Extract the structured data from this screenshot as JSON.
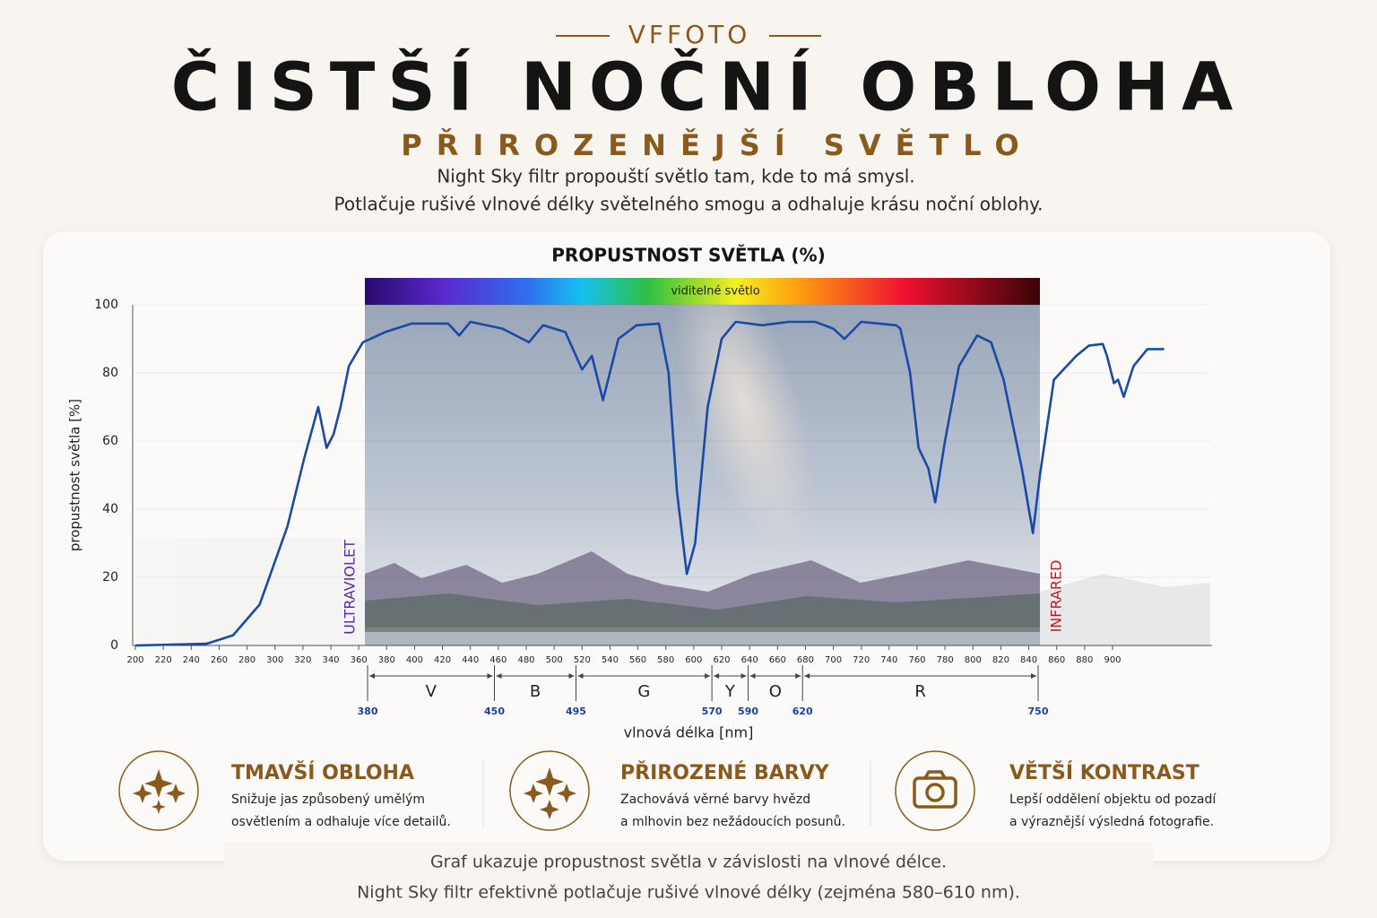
{
  "header": {
    "brand": "VFFOTO",
    "title": "ČISTŠÍ NOČNÍ OBLOHA",
    "subtitle": "PŘIROZENĚJŠÍ SVĚTLO",
    "intro": [
      "Night Sky filtr propouští světlo tam, kde to má smysl.",
      "Potlačuje rušivé vlnové délky světelného smogu a odhaluje krásu noční oblohy."
    ]
  },
  "chart_data": {
    "type": "line",
    "title": "PROPUSTNOST SVĚTLA (%)",
    "x_label": "vlnová délka [nm]",
    "y_label": "propustnost světla [%]",
    "spectrum_label": "viditelné světlo",
    "uv_label": "ULTRAVIOLET",
    "ir_label": "INFRARED",
    "color": "#1b4aa6",
    "x": [
      200,
      251,
      270,
      289,
      309,
      321,
      331,
      337,
      342,
      347,
      353,
      363,
      379,
      398,
      424,
      432,
      440,
      463,
      482,
      492,
      508,
      520,
      527,
      535,
      546,
      559,
      575,
      582,
      588,
      595,
      601,
      610,
      620,
      630,
      649,
      668,
      687,
      700,
      708,
      720,
      745,
      748,
      755,
      761,
      768,
      773,
      780,
      790,
      803,
      813,
      822,
      835,
      843,
      848,
      858,
      874,
      883,
      893,
      896,
      901,
      904,
      908,
      915,
      925,
      937
    ],
    "values": [
      0,
      0.5,
      3,
      12,
      35,
      55,
      70,
      58,
      62,
      70,
      82,
      89,
      92,
      94.5,
      94.5,
      91,
      95,
      93,
      89,
      94,
      92,
      81,
      85,
      72,
      90,
      94,
      94.5,
      80,
      45,
      21,
      30,
      70,
      90,
      95,
      94,
      95,
      95,
      93,
      90,
      95,
      94,
      93,
      80,
      58,
      52,
      42,
      60,
      82,
      91,
      89,
      78,
      52,
      33,
      50,
      78,
      85,
      88,
      88.5,
      85,
      77,
      78,
      73,
      82,
      87,
      87
    ],
    "xlim": [
      200,
      970
    ],
    "ylim": [
      0,
      100
    ],
    "xticks": [
      200,
      220,
      240,
      260,
      280,
      300,
      320,
      340,
      360,
      380,
      400,
      420,
      440,
      460,
      480,
      500,
      520,
      540,
      560,
      580,
      600,
      620,
      640,
      660,
      680,
      700,
      720,
      740,
      760,
      780,
      800,
      820,
      840,
      860,
      880,
      900
    ],
    "yticks": [
      0,
      20,
      40,
      60,
      80,
      100
    ],
    "grid": true,
    "bands": {
      "edges": [
        380,
        450,
        495,
        570,
        590,
        620,
        750
      ],
      "labels": [
        "V",
        "B",
        "G",
        "Y",
        "O",
        "R"
      ]
    }
  },
  "features": [
    {
      "title": "TMAVŠÍ OBLOHA",
      "lines": [
        "Snižuje jas způsobený umělým",
        "osvětlením a odhaluje více detailů."
      ]
    },
    {
      "title": "PŘIROZENÉ BARVY",
      "lines": [
        "Zachovává věrné barvy hvězd",
        "a mlhovin bez nežádoucích posunů."
      ]
    },
    {
      "title": "VĚTŠÍ KONTRAST",
      "lines": [
        "Lepší oddělení objektu od pozadí",
        "a výraznější výsledná fotografie."
      ]
    }
  ],
  "footer": [
    "Graf ukazuje propustnost světla v závislosti na vlnové délce.",
    "Night Sky filtr efektivně potlačuje rušivé vlnové délky (zejména 580–610 nm)."
  ]
}
